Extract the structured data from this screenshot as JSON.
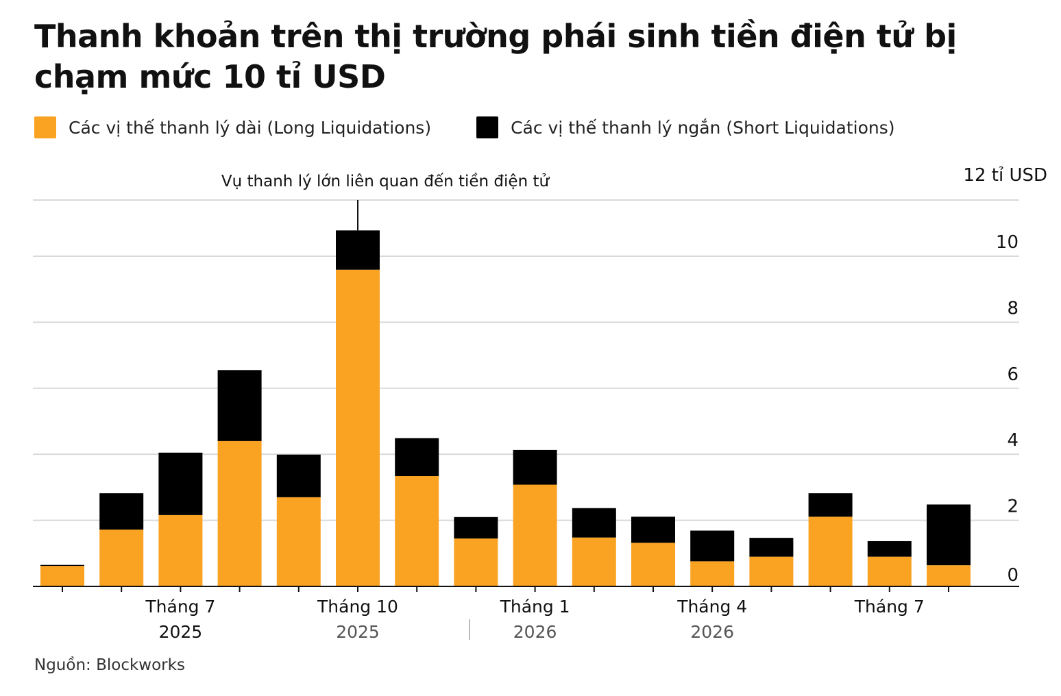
{
  "title": "Thanh khoản trên thị trường phái sinh tiền điện tử bị chạm mức 10 tỉ USD",
  "legend": {
    "long_label": "Các vị thế thanh lý dài (Long Liquidations)",
    "short_label": "Các vị thế thanh lý ngắn (Short Liquidations)"
  },
  "colors": {
    "long": "#FAA323",
    "short": "#000000",
    "grid": "#d9d9d9",
    "axis": "#111111"
  },
  "source": "Nguồn: Blockworks",
  "chart_data": {
    "type": "bar",
    "stacked": true,
    "categories": [
      "",
      "",
      "",
      "",
      "",
      "",
      "",
      "",
      "",
      "",
      "",
      "",
      "",
      "",
      "",
      ""
    ],
    "series": [
      {
        "name": "Các vị thế thanh lý dài (Long Liquidations)",
        "values": [
          0.62,
          1.72,
          2.16,
          4.4,
          2.7,
          9.59,
          3.34,
          1.45,
          3.08,
          1.48,
          1.32,
          0.76,
          0.9,
          2.11,
          0.9,
          0.64
        ]
      },
      {
        "name": "Các vị thế thanh lý ngắn (Short Liquidations)",
        "values": [
          0.03,
          1.1,
          1.89,
          2.15,
          1.29,
          1.19,
          1.15,
          0.65,
          1.05,
          0.89,
          0.79,
          0.93,
          0.57,
          0.71,
          0.47,
          1.84
        ]
      }
    ],
    "y_axis": {
      "min": 0,
      "max": 11.7,
      "ticks": [
        0,
        2,
        4,
        6,
        8,
        10,
        11.7
      ],
      "tick_labels": [
        "0",
        "2",
        "4",
        "6",
        "8",
        "10",
        "12 tỉ USD"
      ],
      "position": "right",
      "grid": true
    },
    "x_axis": {
      "labels": [
        {
          "index": 2,
          "month": "Tháng 7",
          "year": "2025"
        },
        {
          "index": 5,
          "month": "Tháng 10",
          "year": "2025"
        },
        {
          "index": 8,
          "month": "Tháng 1",
          "year": "2026"
        },
        {
          "index": 11,
          "month": "Tháng 4",
          "year": "2026"
        },
        {
          "index": 14,
          "month": "Tháng 7",
          "year": ""
        }
      ]
    },
    "annotation": {
      "index": 5,
      "text": "Vụ thanh lý lớn liên quan đến tiền điện tử"
    },
    "legend_position": "top-left"
  }
}
